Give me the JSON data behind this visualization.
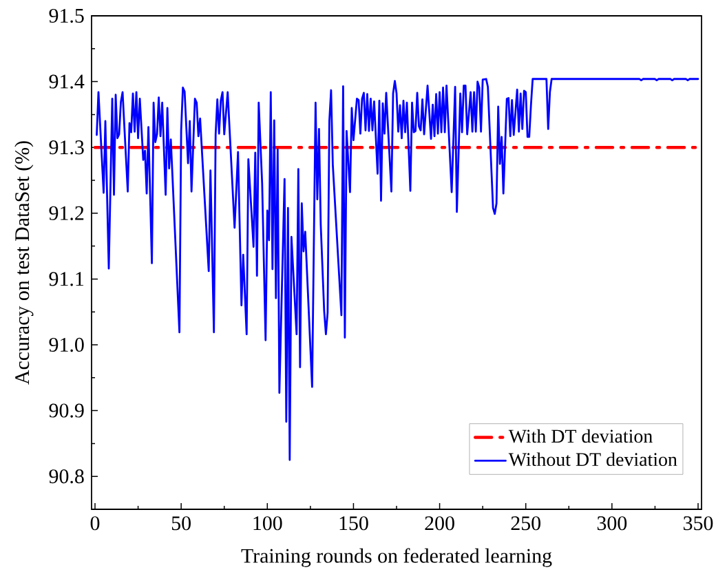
{
  "chart_data": {
    "type": "line",
    "xlabel": "Training rounds on federated learning",
    "ylabel": "Accuracy on test DataSet (%)",
    "xlim": [
      -2,
      352
    ],
    "ylim": [
      90.75,
      91.5
    ],
    "xticks": [
      0,
      50,
      100,
      150,
      200,
      250,
      300,
      350
    ],
    "yticks": [
      90.8,
      90.9,
      {
        "value": 91.0,
        "label": "91.0"
      },
      91.1,
      91.2,
      91.3,
      91.4,
      91.5
    ],
    "grid": false,
    "legend": "bottom right",
    "marker": "none",
    "series": [
      {
        "name": "With DT deviation",
        "color": "#ff0000",
        "line_style": "dashdot",
        "x": [
          0,
          350
        ],
        "values": [
          91.3,
          91.3
        ]
      },
      {
        "name": "Without DT deviation",
        "color": "#0000ff",
        "line_style": "solid",
        "x": [
          1,
          2,
          5,
          6,
          8,
          10,
          11,
          12,
          13,
          14,
          15,
          16,
          19,
          20,
          21,
          22,
          23,
          24,
          25,
          26,
          28,
          29,
          30,
          31,
          33,
          34,
          35,
          36,
          37,
          38,
          39,
          41,
          42,
          43,
          44,
          49,
          50,
          51,
          52,
          54,
          55,
          56,
          58,
          59,
          60,
          61,
          66,
          67,
          69,
          70,
          71,
          72,
          73,
          74,
          75,
          77,
          81,
          83,
          85,
          86,
          88,
          89,
          92,
          93,
          94,
          95,
          97,
          99,
          100,
          101,
          102,
          103,
          104,
          105,
          106,
          107,
          110,
          111,
          112,
          113,
          114,
          117,
          118,
          119,
          120,
          121,
          122,
          126,
          128,
          129,
          130,
          131,
          133,
          134,
          135,
          136,
          137,
          138,
          143,
          144,
          145,
          146,
          148,
          149,
          150,
          152,
          153,
          154,
          155,
          156,
          157,
          158,
          159,
          160,
          161,
          162,
          164,
          165,
          166,
          167,
          168,
          169,
          172,
          173,
          174,
          175,
          176,
          177,
          178,
          179,
          180,
          181,
          183,
          184,
          185,
          186,
          187,
          188,
          189,
          190,
          191,
          193,
          195,
          196,
          197,
          198,
          199,
          200,
          201,
          202,
          203,
          204,
          207,
          209,
          210,
          212,
          213,
          214,
          215,
          216,
          218,
          219,
          220,
          221,
          222,
          223,
          224,
          225,
          227,
          228,
          231,
          232,
          233,
          234,
          235,
          236,
          237,
          239,
          240,
          241,
          242,
          243,
          245,
          246,
          247,
          248,
          249,
          250,
          251,
          252,
          253,
          254,
          262,
          263,
          264,
          265,
          316,
          317,
          318,
          325,
          326,
          327,
          334,
          335,
          336,
          343,
          344,
          345,
          350
        ],
        "values": [
          91.319,
          91.384,
          91.231,
          91.34,
          91.116,
          91.374,
          91.228,
          91.38,
          91.314,
          91.32,
          91.369,
          91.384,
          91.233,
          91.337,
          91.323,
          91.382,
          91.324,
          91.384,
          91.314,
          91.374,
          91.281,
          91.295,
          91.23,
          91.331,
          91.124,
          91.368,
          91.308,
          91.32,
          91.376,
          91.317,
          91.368,
          91.228,
          91.36,
          91.268,
          91.312,
          91.019,
          91.326,
          91.391,
          91.385,
          91.276,
          91.34,
          91.233,
          91.374,
          91.368,
          91.317,
          91.344,
          91.112,
          91.265,
          91.019,
          91.32,
          91.373,
          91.321,
          91.371,
          91.384,
          91.32,
          91.384,
          91.178,
          91.293,
          91.06,
          91.137,
          91.016,
          91.282,
          91.149,
          91.292,
          91.105,
          91.368,
          91.245,
          91.007,
          91.204,
          91.159,
          91.384,
          91.115,
          91.341,
          91.071,
          91.297,
          90.927,
          91.252,
          90.883,
          91.208,
          90.825,
          91.164,
          91.016,
          91.267,
          90.966,
          91.215,
          91.142,
          91.172,
          90.936,
          91.368,
          91.221,
          91.328,
          91.183,
          91.051,
          91.016,
          91.049,
          91.34,
          91.387,
          91.274,
          91.045,
          91.393,
          91.011,
          91.325,
          91.232,
          91.36,
          91.311,
          91.374,
          91.372,
          91.321,
          91.374,
          91.383,
          91.326,
          91.381,
          91.325,
          91.374,
          91.326,
          91.37,
          91.26,
          91.371,
          91.219,
          91.367,
          91.321,
          91.383,
          91.233,
          91.382,
          91.401,
          91.382,
          91.324,
          91.364,
          91.314,
          91.371,
          91.323,
          91.368,
          91.234,
          91.368,
          91.323,
          91.325,
          91.383,
          91.332,
          91.326,
          91.373,
          91.32,
          91.394,
          91.313,
          91.365,
          91.317,
          91.381,
          91.321,
          91.384,
          91.323,
          91.391,
          91.323,
          91.394,
          91.232,
          91.392,
          91.202,
          91.382,
          91.323,
          91.394,
          91.394,
          91.32,
          91.384,
          91.324,
          91.384,
          91.324,
          91.4,
          91.391,
          91.324,
          91.403,
          91.404,
          91.392,
          91.208,
          91.199,
          91.215,
          91.362,
          91.275,
          91.316,
          91.23,
          91.374,
          91.375,
          91.317,
          91.372,
          91.319,
          91.388,
          91.324,
          91.382,
          91.328,
          91.386,
          91.384,
          91.316,
          91.316,
          91.364,
          91.404,
          91.404,
          91.328,
          91.384,
          91.404,
          91.404,
          91.402,
          91.404,
          91.404,
          91.402,
          91.404,
          91.404,
          91.402,
          91.404,
          91.404,
          91.402,
          91.404,
          91.404
        ]
      }
    ]
  }
}
